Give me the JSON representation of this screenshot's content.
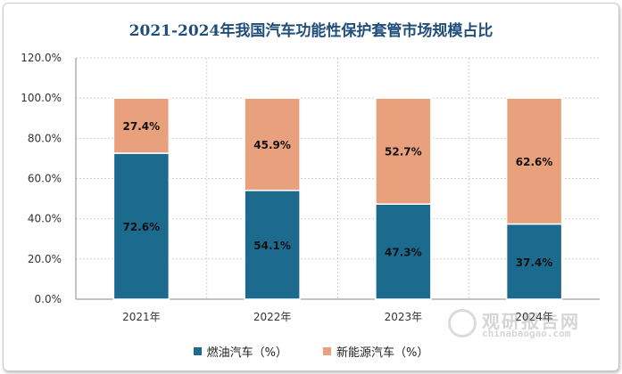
{
  "title": "2021-2024年我国汽车功能性保护套管市场规模占比",
  "colors": {
    "fuel": "#1d6a8f",
    "nev": "#e9a07c",
    "grid": "#cfcfcf",
    "axis": "#888888"
  },
  "watermark": {
    "brand": "观研报告网",
    "url": "chinabaogao.com"
  },
  "chart_data": {
    "type": "bar",
    "stacked": true,
    "categories": [
      "2021年",
      "2022年",
      "2023年",
      "2024年"
    ],
    "series": [
      {
        "name": "燃油汽车（%）",
        "values": [
          72.6,
          54.1,
          47.3,
          37.4
        ]
      },
      {
        "name": "新能源汽车（%）",
        "values": [
          27.4,
          45.9,
          52.7,
          62.6
        ]
      }
    ],
    "data_labels": [
      [
        "72.6%",
        "54.1%",
        "47.3%",
        "37.4%"
      ],
      [
        "27.4%",
        "45.9%",
        "52.7%",
        "62.6%"
      ]
    ],
    "yticks": [
      "0.0%",
      "20.0%",
      "40.0%",
      "60.0%",
      "80.0%",
      "100.0%",
      "120.0%"
    ],
    "ylim": [
      0,
      120
    ],
    "grid": true,
    "legend": "bottom"
  }
}
